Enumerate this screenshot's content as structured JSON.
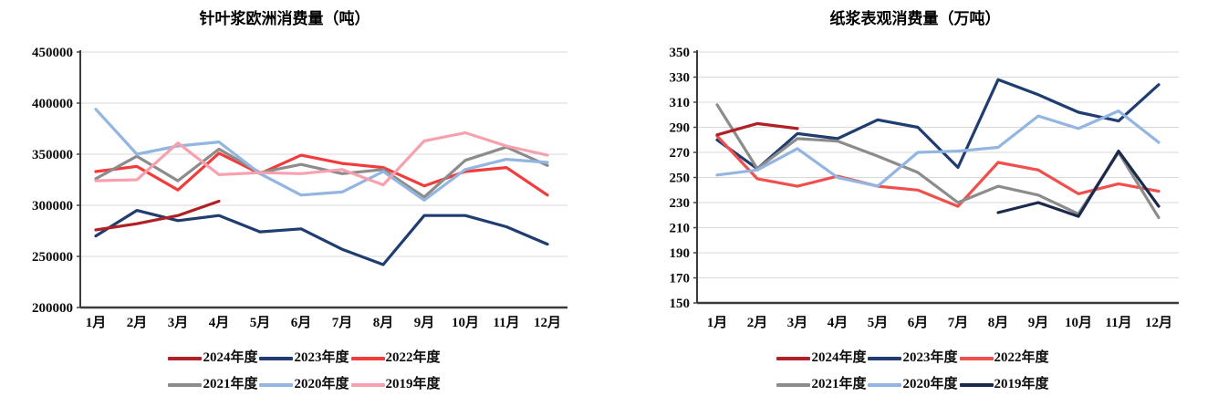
{
  "chart_data": [
    {
      "type": "line",
      "title": "针叶浆欧洲消费量（吨）",
      "xlabel": "",
      "ylabel": "",
      "unit": "吨",
      "categories": [
        "1月",
        "2月",
        "3月",
        "4月",
        "5月",
        "6月",
        "7月",
        "8月",
        "9月",
        "10月",
        "11月",
        "12月"
      ],
      "ylim": [
        200000,
        450000
      ],
      "ytick_step": 50000,
      "yticks": [
        450000,
        400000,
        350000,
        300000,
        250000,
        200000
      ],
      "grid": "horizontal",
      "legend_position": "bottom",
      "series": [
        {
          "name": "2024年度",
          "color": "#b02024",
          "values": [
            276000,
            282000,
            290000,
            304000
          ]
        },
        {
          "name": "2023年度",
          "color": "#1f3d70",
          "values": [
            270000,
            295000,
            285000,
            290000,
            274000,
            277000,
            257000,
            242000,
            290000,
            290000,
            279000,
            262000
          ]
        },
        {
          "name": "2022年度",
          "color": "#f23b3b",
          "values": [
            333000,
            338000,
            315000,
            351000,
            331000,
            349000,
            341000,
            337000,
            319000,
            333000,
            337000,
            310000
          ]
        },
        {
          "name": "2021年度",
          "color": "#8c8c8c",
          "values": [
            326000,
            348000,
            324000,
            355000,
            332000,
            340000,
            331000,
            335000,
            308000,
            344000,
            357000,
            339000
          ]
        },
        {
          "name": "2020年度",
          "color": "#93b5e1",
          "values": [
            394000,
            350000,
            358000,
            362000,
            331000,
            310000,
            313000,
            333000,
            305000,
            335000,
            345000,
            342000
          ]
        },
        {
          "name": "2019年度",
          "color": "#f8a1ae",
          "values": [
            324000,
            325000,
            361000,
            330000,
            332000,
            331000,
            335000,
            320000,
            363000,
            371000,
            358000,
            349000
          ]
        }
      ]
    },
    {
      "type": "line",
      "title": "纸浆表观消费量（万吨）",
      "xlabel": "",
      "ylabel": "",
      "unit": "万吨",
      "categories": [
        "1月",
        "2月",
        "3月",
        "4月",
        "5月",
        "6月",
        "7月",
        "8月",
        "9月",
        "10月",
        "11月",
        "12月"
      ],
      "ylim": [
        150,
        350
      ],
      "ytick_step": 20,
      "yticks": [
        350,
        330,
        310,
        290,
        270,
        250,
        230,
        210,
        190,
        170,
        150
      ],
      "grid": "horizontal",
      "legend_position": "bottom",
      "series": [
        {
          "name": "2024年度",
          "color": "#b02024",
          "values": [
            284,
            293,
            289
          ]
        },
        {
          "name": "2023年度",
          "color": "#1f3d70",
          "values": [
            280,
            257,
            285,
            281,
            296,
            290,
            258,
            328,
            316,
            302,
            295,
            324
          ]
        },
        {
          "name": "2022年度",
          "color": "#f0504d",
          "values": [
            283,
            249,
            243,
            251,
            243,
            240,
            227,
            262,
            256,
            237,
            245,
            239
          ]
        },
        {
          "name": "2021年度",
          "color": "#8c8c8c",
          "values": [
            308,
            257,
            281,
            279,
            267,
            254,
            230,
            243,
            236,
            221,
            270,
            218
          ]
        },
        {
          "name": "2020年度",
          "color": "#93b5e1",
          "values": [
            252,
            256,
            273,
            250,
            243,
            270,
            271,
            274,
            299,
            289,
            303,
            278
          ]
        },
        {
          "name": "2019年度",
          "color": "#1b2a4a",
          "values": [
            null,
            null,
            null,
            null,
            null,
            null,
            null,
            222,
            230,
            219,
            271,
            227
          ]
        }
      ]
    }
  ]
}
